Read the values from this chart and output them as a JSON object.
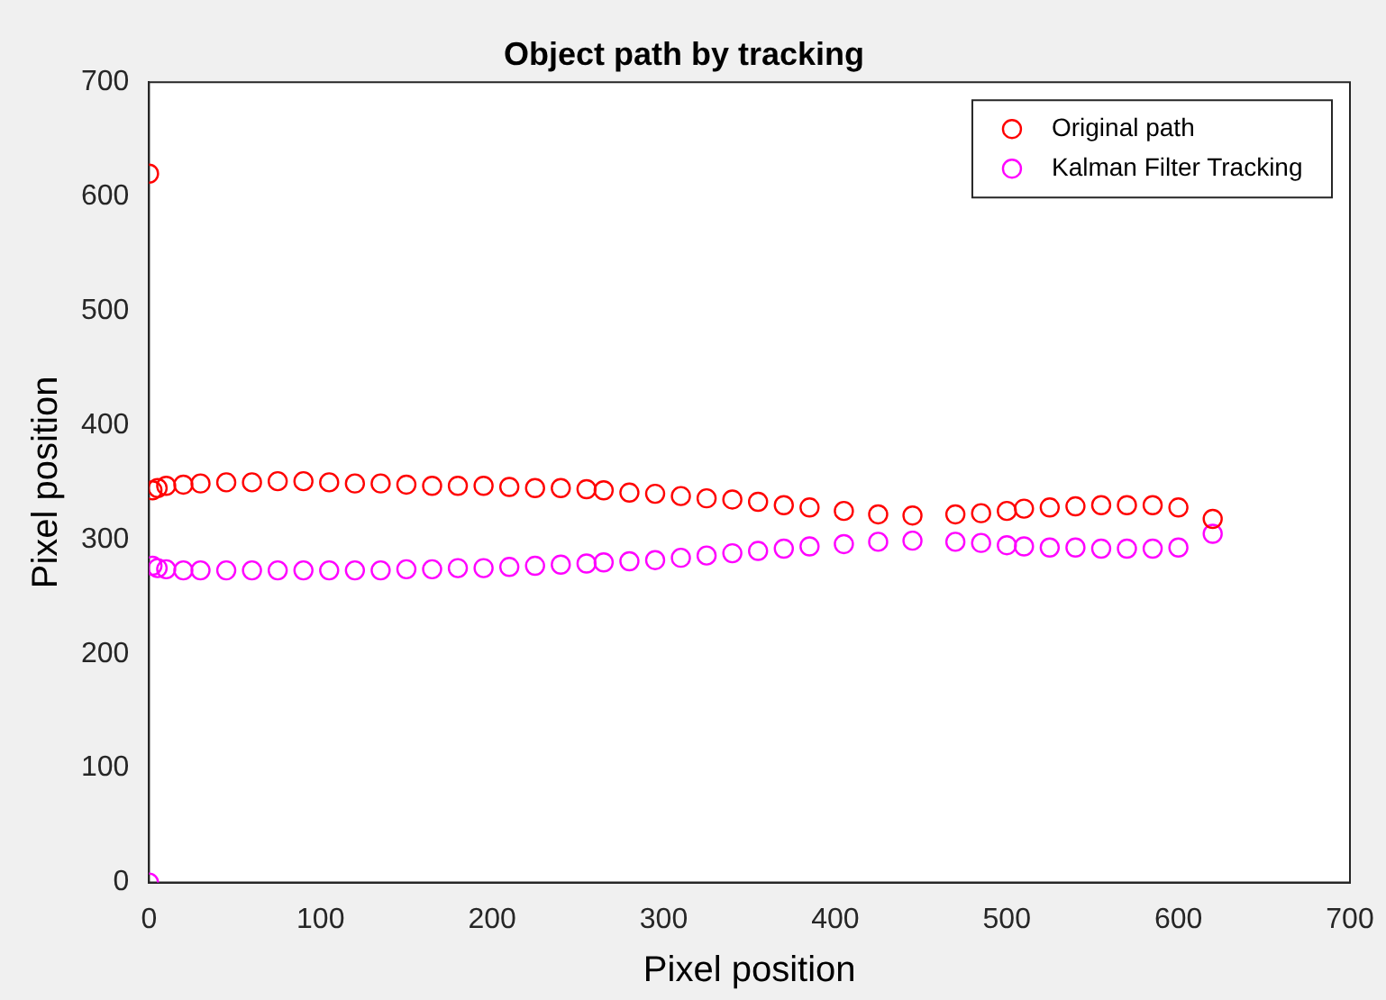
{
  "chart_data": {
    "type": "scatter",
    "title": "Object path by tracking",
    "xlabel": "Pixel position",
    "ylabel": "Pixel position",
    "xlim": [
      0,
      700
    ],
    "xticks": [
      0,
      100,
      200,
      300,
      400,
      500,
      600,
      700
    ],
    "ylim": [
      0,
      700
    ],
    "yticks": [
      0,
      100,
      200,
      300,
      400,
      500,
      600,
      700
    ],
    "grid": false,
    "legend": "top right",
    "marker": "circle",
    "series": [
      {
        "name": "Original path",
        "color": "#ff0000",
        "x": [
          0,
          2,
          5,
          10,
          20,
          30,
          45,
          60,
          75,
          90,
          105,
          120,
          135,
          150,
          165,
          180,
          195,
          210,
          225,
          240,
          255,
          265,
          280,
          295,
          310,
          325,
          340,
          355,
          370,
          385,
          405,
          425,
          445,
          470,
          485,
          500,
          510,
          525,
          540,
          555,
          570,
          585,
          600,
          620
        ],
        "values": [
          620,
          343,
          345,
          347,
          348,
          349,
          350,
          350,
          351,
          351,
          350,
          349,
          349,
          348,
          347,
          347,
          347,
          346,
          345,
          345,
          344,
          343,
          341,
          340,
          338,
          336,
          335,
          333,
          330,
          328,
          325,
          322,
          321,
          322,
          323,
          325,
          327,
          328,
          329,
          330,
          330,
          330,
          328,
          318
        ]
      },
      {
        "name": "Kalman Filter Tracking",
        "color": "#ff00ff",
        "x": [
          0,
          2,
          5,
          10,
          20,
          30,
          45,
          60,
          75,
          90,
          105,
          120,
          135,
          150,
          165,
          180,
          195,
          210,
          225,
          240,
          255,
          265,
          280,
          295,
          310,
          325,
          340,
          355,
          370,
          385,
          405,
          425,
          445,
          470,
          485,
          500,
          510,
          525,
          540,
          555,
          570,
          585,
          600,
          620
        ],
        "values": [
          0,
          277,
          275,
          274,
          273,
          273,
          273,
          273,
          273,
          273,
          273,
          273,
          273,
          274,
          274,
          275,
          275,
          276,
          277,
          278,
          279,
          280,
          281,
          282,
          284,
          286,
          288,
          290,
          292,
          294,
          296,
          298,
          299,
          298,
          297,
          295,
          294,
          293,
          293,
          292,
          292,
          292,
          293,
          305
        ]
      }
    ]
  }
}
